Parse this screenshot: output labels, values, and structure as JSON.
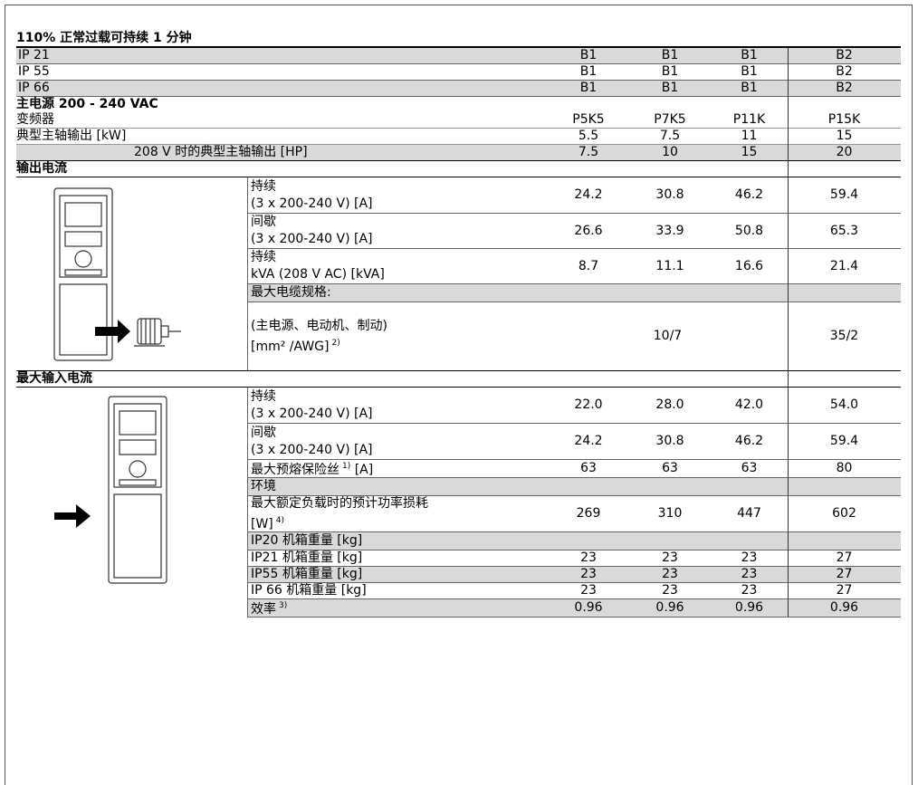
{
  "title": "110% 正常过载可持续 1 分钟",
  "enclosure": {
    "rows": [
      {
        "label": "IP 21",
        "values": [
          "B1",
          "B1",
          "B1",
          "B2"
        ]
      },
      {
        "label": "IP 55",
        "values": [
          "B1",
          "B1",
          "B1",
          "B2"
        ]
      },
      {
        "label": "IP 66",
        "values": [
          "B1",
          "B1",
          "B1",
          "B2"
        ]
      }
    ]
  },
  "mains": {
    "heading": "主电源 200 - 240 VAC",
    "rows": [
      {
        "label": "变频器",
        "values": [
          "P5K5",
          "P7K5",
          "P11K",
          "P15K"
        ]
      },
      {
        "label": "典型主轴输出 [kW]",
        "values": [
          "5.5",
          "7.5",
          "11",
          "15"
        ]
      },
      {
        "label": "208 V 时的典型主轴输出 [HP]",
        "values": [
          "7.5",
          "10",
          "15",
          "20"
        ]
      }
    ]
  },
  "output_current": {
    "heading": "输出电流",
    "rows": [
      {
        "lines": [
          "持续",
          "(3 x 200-240 V) [A]"
        ],
        "values": [
          "24.2",
          "30.8",
          "46.2",
          "59.4"
        ]
      },
      {
        "lines": [
          "间歇",
          "(3 x 200-240 V) [A]"
        ],
        "values": [
          "26.6",
          "33.9",
          "50.8",
          "65.3"
        ]
      },
      {
        "lines": [
          "持续",
          "kVA (208 V AC) [kVA]"
        ],
        "values": [
          "8.7",
          "11.1",
          "16.6",
          "21.4"
        ]
      },
      {
        "lines": [
          "最大电缆规格:"
        ],
        "values": []
      },
      {
        "lines": [
          "(主电源、电动机、制动)",
          {
            "text": "[mm² /AWG]",
            "note": "2)"
          }
        ],
        "values": [
          "10/7",
          "35/2"
        ],
        "colspan": [
          3,
          1
        ]
      }
    ]
  },
  "input_current": {
    "heading": "最大输入电流",
    "rows": [
      {
        "lines": [
          "持续",
          "(3 x 200-240 V) [A]"
        ],
        "values": [
          "22.0",
          "28.0",
          "42.0",
          "54.0"
        ]
      },
      {
        "lines": [
          "间歇",
          "(3 x 200-240 V) [A]"
        ],
        "values": [
          "24.2",
          "30.8",
          "46.2",
          "59.4"
        ]
      },
      {
        "lines": [
          {
            "text": "最大预熔保险丝",
            "note": "1)",
            "after": " [A]"
          }
        ],
        "values": [
          "63",
          "63",
          "63",
          "80"
        ]
      },
      {
        "lines": [
          "环境"
        ],
        "values": []
      },
      {
        "lines": [
          "最大额定负载时的预计功率损耗",
          {
            "text": "[W]",
            "note": "4)"
          }
        ],
        "values": [
          "269",
          "310",
          "447",
          "602"
        ]
      },
      {
        "lines": [
          "IP20 机箱重量 [kg]"
        ],
        "values": []
      },
      {
        "lines": [
          "IP21 机箱重量 [kg]"
        ],
        "values": [
          "23",
          "23",
          "23",
          "27"
        ]
      },
      {
        "lines": [
          "IP55 机箱重量 [kg]"
        ],
        "values": [
          "23",
          "23",
          "23",
          "27"
        ]
      },
      {
        "lines": [
          "IP 66 机箱重量 [kg]"
        ],
        "values": [
          "23",
          "23",
          "23",
          "27"
        ]
      },
      {
        "lines": [
          {
            "text": "效率",
            "note": "3)"
          }
        ],
        "values": [
          "0.96",
          "0.96",
          "0.96",
          "0.96"
        ]
      }
    ]
  }
}
